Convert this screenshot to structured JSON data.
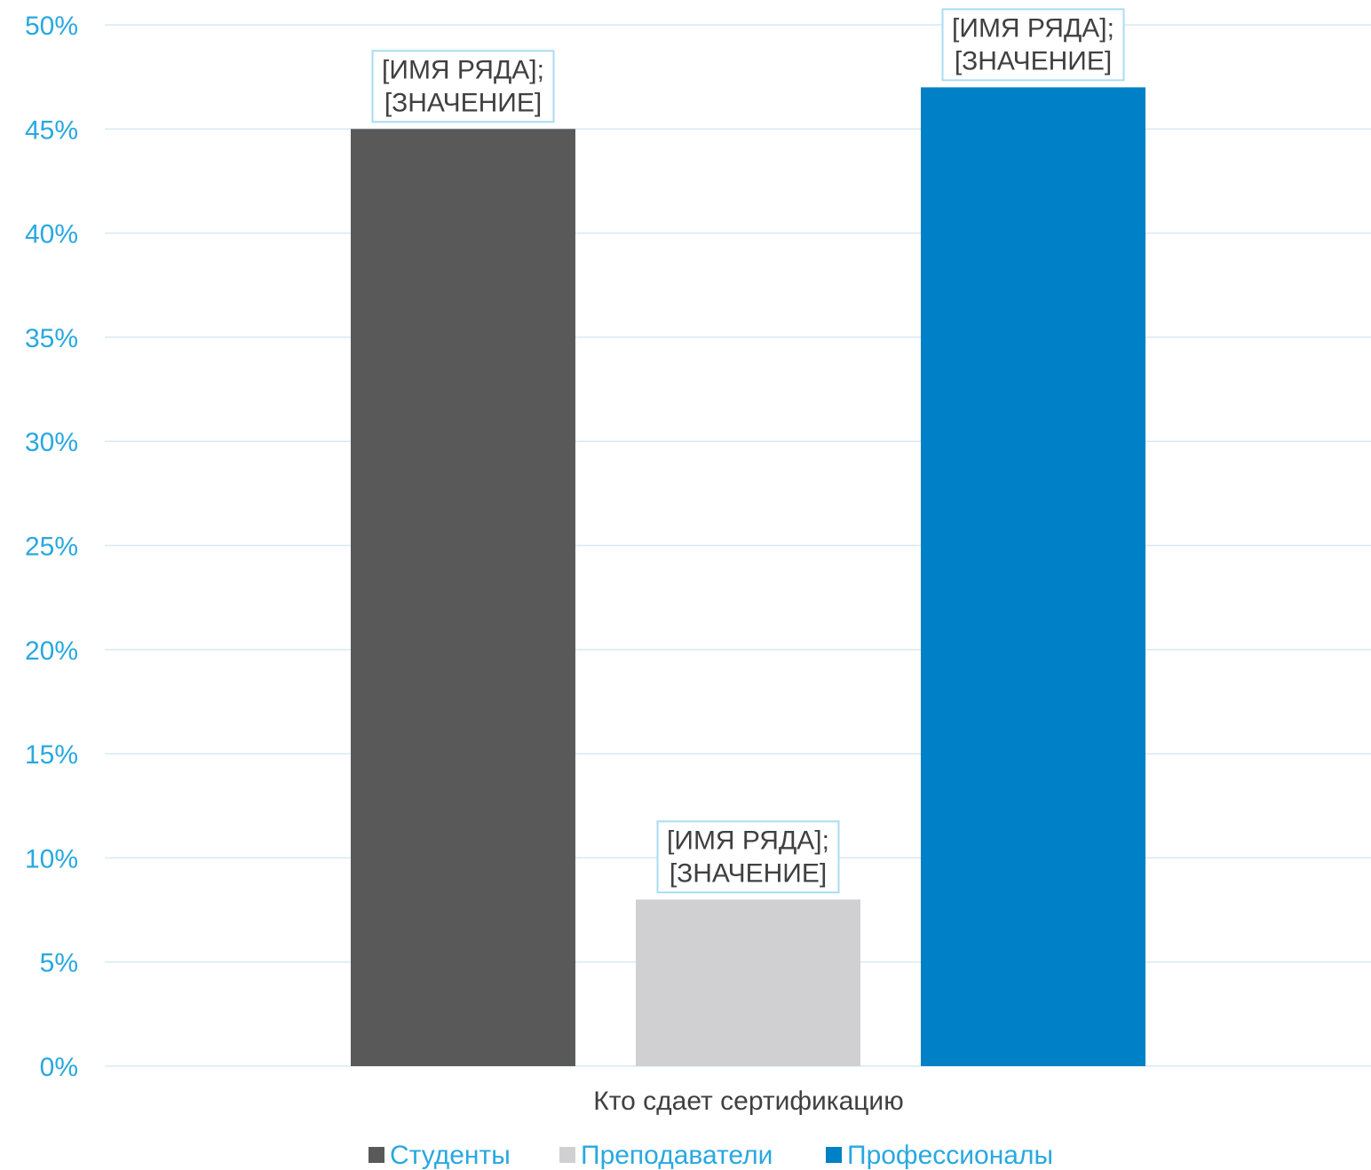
{
  "chart_data": {
    "type": "bar",
    "title": "",
    "xlabel": "Кто сдает сертификацию",
    "ylabel": "",
    "ylim": [
      0,
      0.5
    ],
    "yticks": [
      "0%",
      "5%",
      "10%",
      "15%",
      "20%",
      "25%",
      "30%",
      "35%",
      "40%",
      "45%",
      "50%"
    ],
    "grid": true,
    "legend_position": "bottom",
    "series": [
      {
        "name": "Студенты",
        "value": 0.45,
        "color": "#595959",
        "label_lines": [
          "[ИМЯ РЯДА];",
          "[ЗНАЧЕНИЕ]"
        ]
      },
      {
        "name": "Преподаватели",
        "value": 0.08,
        "color": "#d0d0d2",
        "label_lines": [
          "[ИМЯ РЯДА];",
          "[ЗНАЧЕНИЕ]"
        ]
      },
      {
        "name": "Профессионалы",
        "value": 0.47,
        "color": "#0080c6",
        "label_lines": [
          "[ИМЯ РЯДА];",
          "[ЗНАЧЕНИЕ]"
        ]
      }
    ]
  }
}
